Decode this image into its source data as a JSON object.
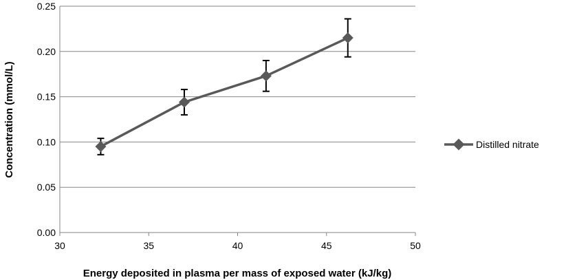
{
  "chart_data": {
    "type": "line",
    "xlabel": "Energy deposited in plasma per mass of exposed water (kJ/kg)",
    "ylabel": "Concentration (mmol/L)",
    "xlim": [
      30,
      50
    ],
    "ylim": [
      0,
      0.25
    ],
    "x_ticks": [
      "30",
      "35",
      "40",
      "45",
      "50"
    ],
    "y_ticks": [
      "0.00",
      "0.05",
      "0.10",
      "0.15",
      "0.20",
      "0.25"
    ],
    "grid": "horizontal",
    "legend_position": "right",
    "series": [
      {
        "name": "Distilled nitrate",
        "color": "#595959",
        "marker": "diamond",
        "x": [
          32.3,
          37.0,
          41.6,
          46.2
        ],
        "y": [
          0.095,
          0.144,
          0.173,
          0.215
        ],
        "error": [
          0.009,
          0.014,
          0.017,
          0.021
        ]
      }
    ]
  }
}
